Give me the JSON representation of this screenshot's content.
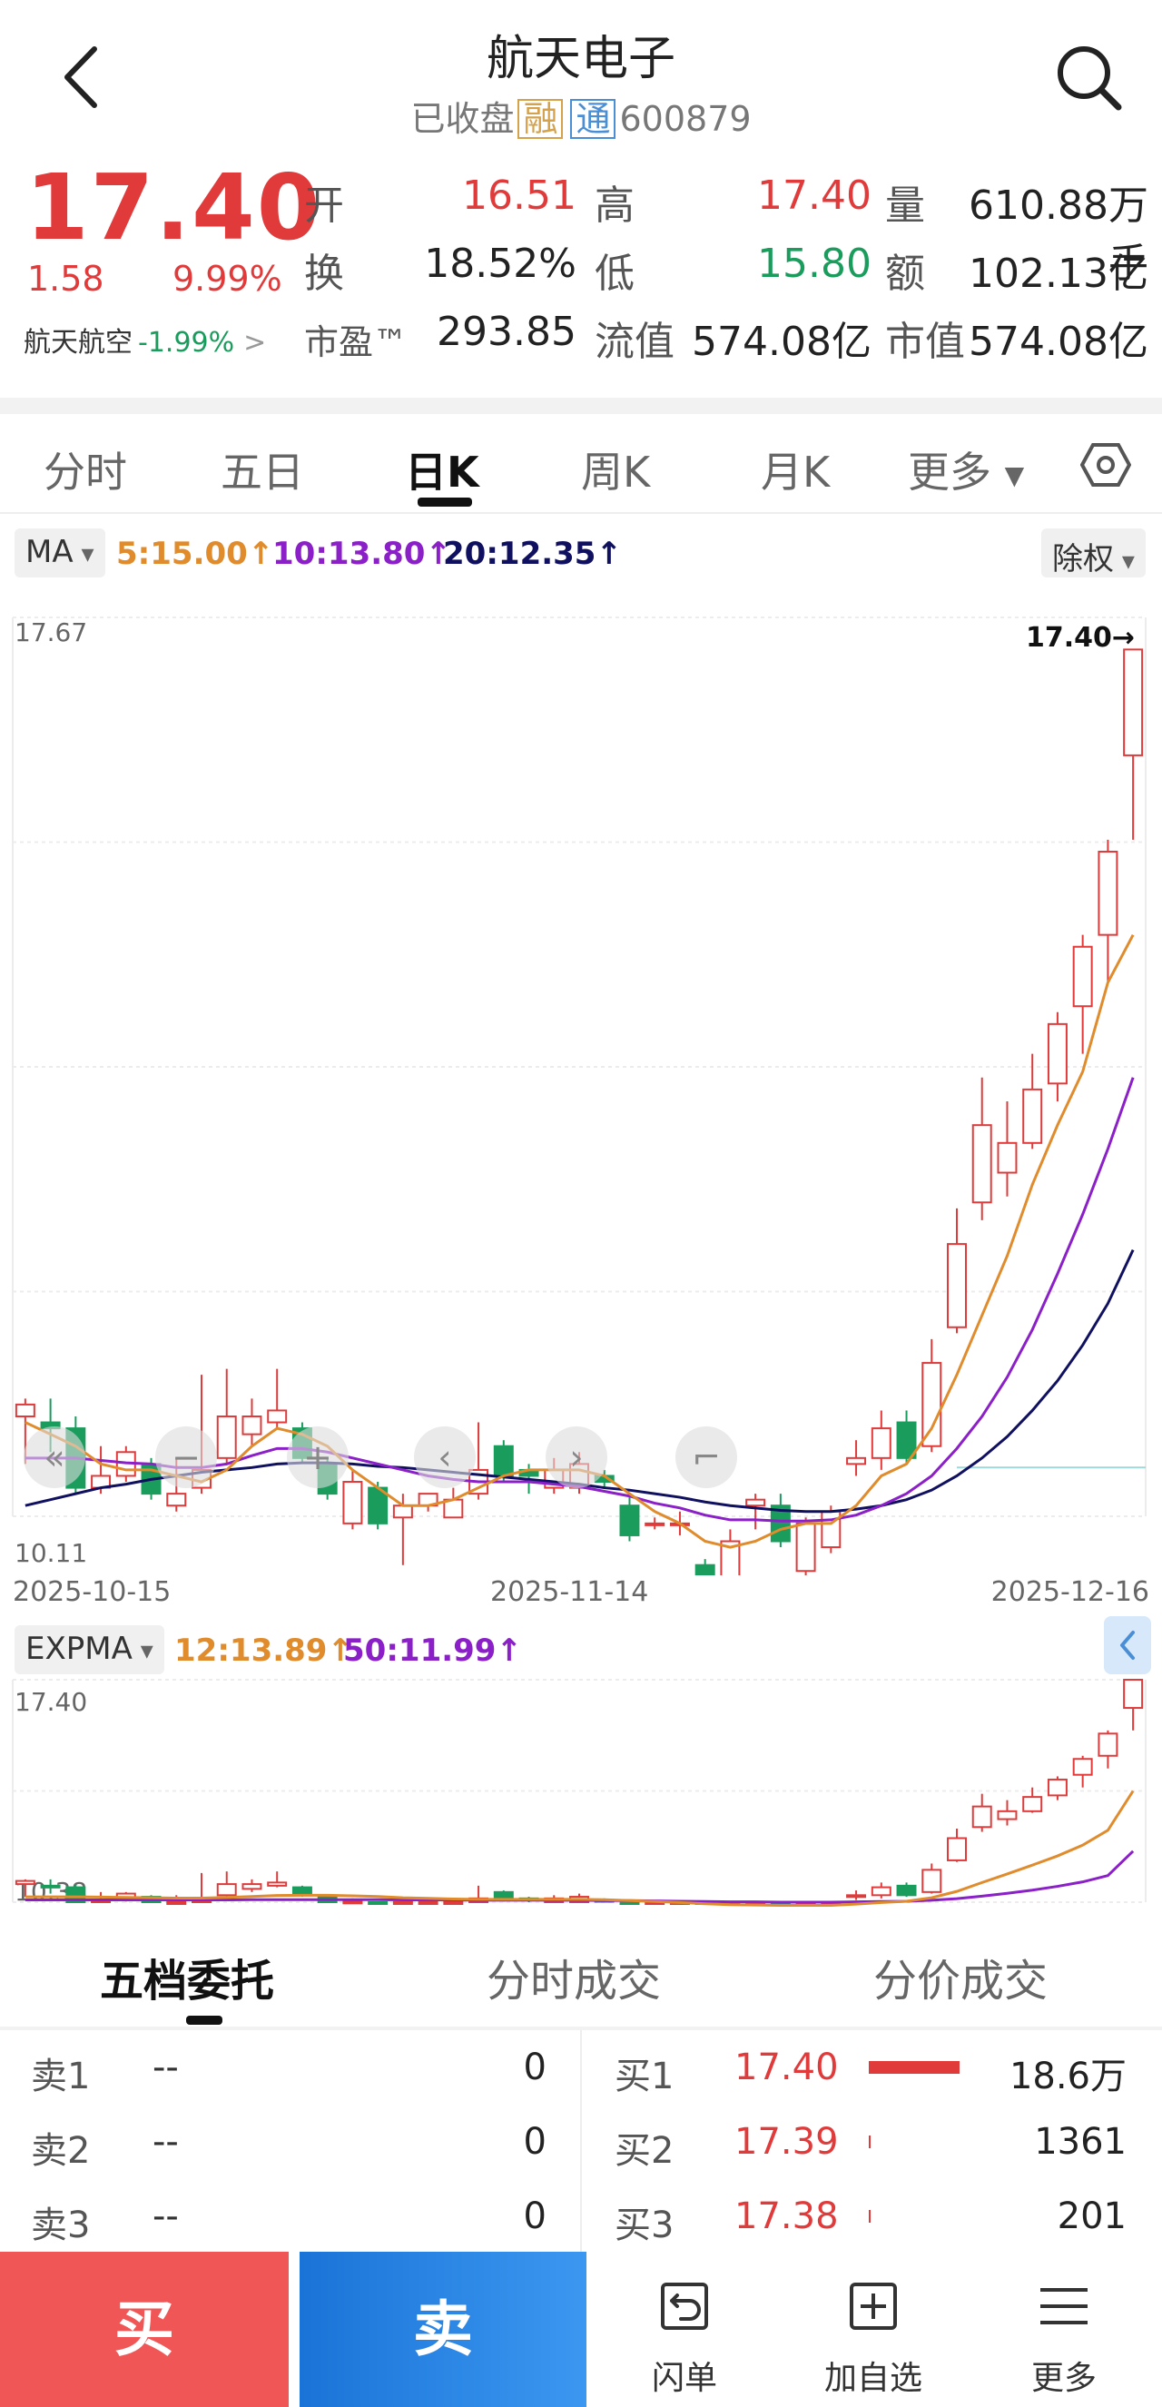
{
  "header": {
    "title": "航天电子",
    "status": "已收盘",
    "tag_rong": "融",
    "tag_tong": "通",
    "code": "600879"
  },
  "quote": {
    "price": "17.40",
    "change": "1.58",
    "change_pct": "9.99%",
    "related_name": "航天航空",
    "related_pct": "-1.99%",
    "open_label": "开",
    "open_value": "16.51",
    "high_label": "高",
    "high_value": "17.40",
    "volume_label": "量",
    "volume_value": "610.88万手",
    "turnover_label": "换",
    "turnover_value": "18.52%",
    "low_label": "低",
    "low_value": "15.80",
    "amount_label": "额",
    "amount_value": "102.13亿",
    "pe_label": "市盈™",
    "pe_value": "293.85",
    "float_cap_label": "流值",
    "float_cap_value": "574.08亿",
    "mkt_cap_label": "市值",
    "mkt_cap_value": "574.08亿"
  },
  "period_tabs": [
    "分时",
    "五日",
    "日K",
    "周K",
    "月K",
    "更多"
  ],
  "active_period": "日K",
  "ma_legend": {
    "selector": "MA",
    "ma5": "5:15.00",
    "ma10": "10:13.80",
    "ma20": "20:12.35",
    "adjust": "除权"
  },
  "expma_legend": {
    "selector": "EXPMA",
    "e12": "12:13.89",
    "e50": "50:11.99"
  },
  "colors": {
    "up": "#e03a3a",
    "down": "#1a9c5c",
    "ma5": "#e08b2c",
    "ma10": "#8b1fc8",
    "ma20": "#101060",
    "e12": "#e08b2c",
    "e50": "#8b1fc8",
    "buy": "#f05656",
    "sell": "#1a74d8"
  },
  "chart_data": [
    {
      "type": "candlestick",
      "title": "",
      "dates": [
        "2025-10-15",
        "2025-11-14",
        "2025-12-16"
      ],
      "ylim": [
        10.11,
        17.67
      ],
      "y_labels": [
        "17.67",
        "10.11"
      ],
      "annotations": [
        "17.40→",
        "10.38→"
      ],
      "candles": [
        [
          10.95,
          11.05,
          10.55,
          11.1
        ],
        [
          10.9,
          10.85,
          10.65,
          11.1
        ],
        [
          10.85,
          10.35,
          10.3,
          10.95
        ],
        [
          10.35,
          10.45,
          10.3,
          10.7
        ],
        [
          10.45,
          10.65,
          10.4,
          10.7
        ],
        [
          10.55,
          10.3,
          10.25,
          10.6
        ],
        [
          10.2,
          10.3,
          10.15,
          10.6
        ],
        [
          10.35,
          10.5,
          10.3,
          11.3
        ],
        [
          10.6,
          10.95,
          10.55,
          11.35
        ],
        [
          10.8,
          10.95,
          10.7,
          11.1
        ],
        [
          10.9,
          11.0,
          10.85,
          11.35
        ],
        [
          10.85,
          10.6,
          10.55,
          10.9
        ],
        [
          10.55,
          10.3,
          10.25,
          10.6
        ],
        [
          10.05,
          10.4,
          10.0,
          10.5
        ],
        [
          10.35,
          10.05,
          10.0,
          10.4
        ],
        [
          10.1,
          10.2,
          9.7,
          10.3
        ],
        [
          10.2,
          10.3,
          10.15,
          10.3
        ],
        [
          10.1,
          10.25,
          10.1,
          10.35
        ],
        [
          10.3,
          10.5,
          10.25,
          10.9
        ],
        [
          10.7,
          10.45,
          10.4,
          10.75
        ],
        [
          10.5,
          10.45,
          10.3,
          10.55
        ],
        [
          10.35,
          10.5,
          10.3,
          10.6
        ],
        [
          10.35,
          10.55,
          10.3,
          10.65
        ],
        [
          10.45,
          10.4,
          10.35,
          10.5
        ],
        [
          10.2,
          9.95,
          9.9,
          10.3
        ],
        [
          10.05,
          10.05,
          10.0,
          10.1
        ],
        [
          10.05,
          10.05,
          9.95,
          10.15
        ],
        [
          9.7,
          9.45,
          9.4,
          9.75
        ],
        [
          9.6,
          9.9,
          9.55,
          10.0
        ],
        [
          10.2,
          10.25,
          10.0,
          10.3
        ],
        [
          10.2,
          9.9,
          9.85,
          10.3
        ],
        [
          9.65,
          10.05,
          9.6,
          10.1
        ],
        [
          9.85,
          10.15,
          9.8,
          10.2
        ],
        [
          10.55,
          10.6,
          10.45,
          10.75
        ],
        [
          10.6,
          10.85,
          10.5,
          11.0
        ],
        [
          10.9,
          10.6,
          10.55,
          11.0
        ],
        [
          10.7,
          11.4,
          10.65,
          11.6
        ],
        [
          11.7,
          12.4,
          11.65,
          12.7
        ],
        [
          12.75,
          13.4,
          12.6,
          13.8
        ],
        [
          13.0,
          13.25,
          12.8,
          13.6
        ],
        [
          13.25,
          13.7,
          13.2,
          14.0
        ],
        [
          13.75,
          14.25,
          13.6,
          14.35
        ],
        [
          14.4,
          14.9,
          14.0,
          15.0
        ],
        [
          15.0,
          15.7,
          14.6,
          15.8
        ],
        [
          16.51,
          17.4,
          15.8,
          17.4
        ]
      ],
      "ma5": [
        10.9,
        10.8,
        10.7,
        10.55,
        10.5,
        10.5,
        10.45,
        10.4,
        10.5,
        10.7,
        10.85,
        10.8,
        10.7,
        10.5,
        10.35,
        10.2,
        10.2,
        10.25,
        10.35,
        10.45,
        10.5,
        10.5,
        10.5,
        10.45,
        10.3,
        10.15,
        10.05,
        9.9,
        9.85,
        9.9,
        10.0,
        10.05,
        10.05,
        10.2,
        10.45,
        10.55,
        10.85,
        11.3,
        11.8,
        12.3,
        12.9,
        13.4,
        13.85,
        14.6,
        15.0
      ],
      "ma10": [
        10.6,
        10.6,
        10.6,
        10.58,
        10.56,
        10.55,
        10.52,
        10.52,
        10.55,
        10.62,
        10.68,
        10.68,
        10.65,
        10.6,
        10.55,
        10.5,
        10.45,
        10.42,
        10.4,
        10.4,
        10.4,
        10.38,
        10.36,
        10.32,
        10.28,
        10.22,
        10.18,
        10.12,
        10.08,
        10.08,
        10.07,
        10.07,
        10.08,
        10.12,
        10.2,
        10.3,
        10.45,
        10.68,
        10.95,
        11.28,
        11.68,
        12.15,
        12.65,
        13.2,
        13.8
      ],
      "ma20": [
        10.2,
        10.25,
        10.3,
        10.35,
        10.38,
        10.42,
        10.45,
        10.48,
        10.5,
        10.52,
        10.55,
        10.56,
        10.56,
        10.55,
        10.53,
        10.52,
        10.5,
        10.48,
        10.46,
        10.44,
        10.42,
        10.4,
        10.38,
        10.35,
        10.33,
        10.3,
        10.27,
        10.23,
        10.2,
        10.18,
        10.16,
        10.15,
        10.15,
        10.17,
        10.2,
        10.25,
        10.33,
        10.45,
        10.6,
        10.78,
        11.0,
        11.25,
        11.55,
        11.9,
        12.35
      ],
      "ref_line": 10.38
    },
    {
      "type": "line",
      "title": "",
      "ylim": [
        10.38,
        17.4
      ],
      "y_labels": [
        "17.40",
        "10.38"
      ],
      "e12": [
        10.55,
        10.55,
        10.55,
        10.54,
        10.53,
        10.52,
        10.51,
        10.51,
        10.53,
        10.56,
        10.59,
        10.6,
        10.6,
        10.58,
        10.56,
        10.52,
        10.5,
        10.48,
        10.47,
        10.47,
        10.47,
        10.47,
        10.47,
        10.46,
        10.43,
        10.4,
        10.37,
        10.33,
        10.3,
        10.29,
        10.28,
        10.28,
        10.28,
        10.32,
        10.37,
        10.41,
        10.52,
        10.72,
        11.0,
        11.27,
        11.55,
        11.84,
        12.18,
        12.65,
        13.89
      ],
      "e50": [
        10.45,
        10.45,
        10.45,
        10.45,
        10.45,
        10.45,
        10.45,
        10.45,
        10.45,
        10.46,
        10.46,
        10.46,
        10.46,
        10.46,
        10.46,
        10.45,
        10.45,
        10.45,
        10.44,
        10.44,
        10.44,
        10.44,
        10.44,
        10.43,
        10.43,
        10.42,
        10.41,
        10.4,
        10.39,
        10.39,
        10.38,
        10.38,
        10.38,
        10.39,
        10.4,
        10.41,
        10.44,
        10.49,
        10.57,
        10.66,
        10.76,
        10.88,
        11.02,
        11.22,
        11.99
      ]
    }
  ],
  "date_axis": [
    "2025-10-15",
    "2025-11-14",
    "2025-12-16"
  ],
  "orderbook": {
    "tabs": [
      "五档委托",
      "分时成交",
      "分价成交"
    ],
    "active_tab": "五档委托",
    "sell": [
      {
        "label": "卖1",
        "price": "--",
        "volume": "0"
      },
      {
        "label": "卖2",
        "price": "--",
        "volume": "0"
      },
      {
        "label": "卖3",
        "price": "--",
        "volume": "0"
      }
    ],
    "buy": [
      {
        "label": "买1",
        "price": "17.40",
        "volume": "18.6万",
        "bar": 1.0
      },
      {
        "label": "买2",
        "price": "17.39",
        "volume": "1361",
        "bar": 0.01
      },
      {
        "label": "买3",
        "price": "17.38",
        "volume": "201",
        "bar": 0.005
      }
    ]
  },
  "bottom_bar": {
    "buy": "买",
    "sell": "卖",
    "order": "闪单",
    "add_watch": "加自选",
    "more": "更多"
  }
}
